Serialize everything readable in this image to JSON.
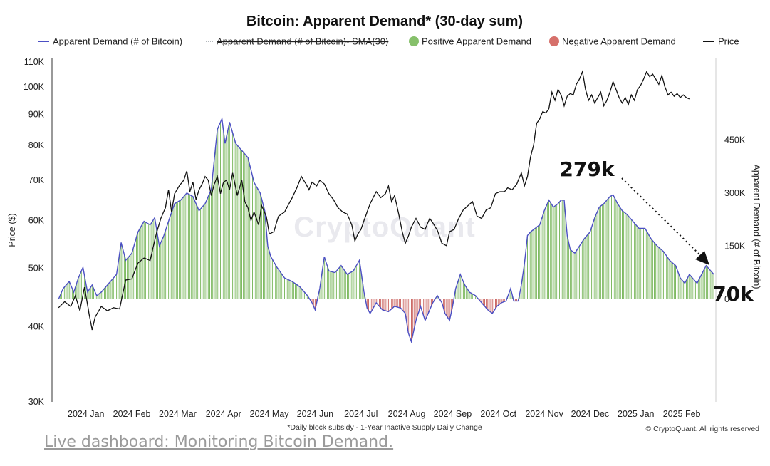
{
  "chart_data": {
    "type": "bar+line",
    "title": "Bitcoin: Apparent Demand* (30-day sum)",
    "footnote": "*Daily block subsidy - 1-Year Inactive Supply Daily Change",
    "copyright": "© CryptoQuant. All rights reserved",
    "watermark": "CryptoQuant",
    "legend": [
      {
        "label": "Apparent Demand (# of Bitcoin)",
        "style": "line",
        "color": "#4b4fc4"
      },
      {
        "label": "Apparent Demand (# of Bitcoin)- SMA(30)",
        "style": "dotted-strike",
        "color": "#9aa0a6"
      },
      {
        "label": "Positive Apparent Demand",
        "style": "dot",
        "color": "#86c06b"
      },
      {
        "label": "Negative Apparent Demand",
        "style": "dot",
        "color": "#d6706b"
      },
      {
        "label": "Price",
        "style": "line",
        "color": "#111111"
      }
    ],
    "y_left": {
      "label": "Price ($)",
      "scale": "log",
      "range": [
        30000,
        110000
      ],
      "ticks": [
        {
          "value": 30000,
          "label": "30K"
        },
        {
          "value": 40000,
          "label": "40K"
        },
        {
          "value": 50000,
          "label": "50K"
        },
        {
          "value": 60000,
          "label": "60K"
        },
        {
          "value": 70000,
          "label": "70K"
        },
        {
          "value": 80000,
          "label": "80K"
        },
        {
          "value": 90000,
          "label": "90K"
        },
        {
          "value": 100000,
          "label": "100K"
        },
        {
          "value": 110000,
          "label": "110K"
        }
      ]
    },
    "y_right": {
      "label": "Apparent Demand (# of Bitcoin)",
      "scale": "linear",
      "range": [
        -290000,
        670000
      ],
      "ticks": [
        {
          "value": 0,
          "label": "0"
        },
        {
          "value": 150000,
          "label": "150K"
        },
        {
          "value": 300000,
          "label": "300K"
        },
        {
          "value": 450000,
          "label": "450K"
        }
      ]
    },
    "x_ticks": [
      {
        "day": 10,
        "label": "2024 Jan"
      },
      {
        "day": 40,
        "label": "2024 Feb"
      },
      {
        "day": 70,
        "label": "2024 Mar"
      },
      {
        "day": 100,
        "label": "2024 Apr"
      },
      {
        "day": 130,
        "label": "2024 May"
      },
      {
        "day": 160,
        "label": "2024 Jun"
      },
      {
        "day": 190,
        "label": "2024 Jul"
      },
      {
        "day": 220,
        "label": "2024 Aug"
      },
      {
        "day": 250,
        "label": "2024 Sep"
      },
      {
        "day": 280,
        "label": "2024 Oct"
      },
      {
        "day": 310,
        "label": "2024 Nov"
      },
      {
        "day": 340,
        "label": "2024 Dec"
      },
      {
        "day": 370,
        "label": "2025 Jan"
      },
      {
        "day": 400,
        "label": "2025 Feb"
      }
    ],
    "x_range_days": [
      -9,
      420
    ],
    "demand_knots": [
      [
        -8,
        0
      ],
      [
        -5,
        30000
      ],
      [
        -1,
        50000
      ],
      [
        2,
        20000
      ],
      [
        5,
        60000
      ],
      [
        8,
        90000
      ],
      [
        11,
        20000
      ],
      [
        14,
        40000
      ],
      [
        17,
        10000
      ],
      [
        20,
        20000
      ],
      [
        24,
        40000
      ],
      [
        27,
        55000
      ],
      [
        30,
        70000
      ],
      [
        33,
        160000
      ],
      [
        36,
        110000
      ],
      [
        40,
        130000
      ],
      [
        44,
        190000
      ],
      [
        48,
        220000
      ],
      [
        52,
        210000
      ],
      [
        55,
        230000
      ],
      [
        58,
        150000
      ],
      [
        61,
        180000
      ],
      [
        64,
        220000
      ],
      [
        68,
        270000
      ],
      [
        72,
        280000
      ],
      [
        76,
        300000
      ],
      [
        80,
        290000
      ],
      [
        84,
        250000
      ],
      [
        88,
        270000
      ],
      [
        92,
        310000
      ],
      [
        96,
        480000
      ],
      [
        99,
        510000
      ],
      [
        101,
        440000
      ],
      [
        104,
        500000
      ],
      [
        108,
        440000
      ],
      [
        112,
        420000
      ],
      [
        116,
        400000
      ],
      [
        120,
        330000
      ],
      [
        124,
        300000
      ],
      [
        127,
        250000
      ],
      [
        129,
        150000
      ],
      [
        131,
        120000
      ],
      [
        135,
        90000
      ],
      [
        140,
        60000
      ],
      [
        145,
        50000
      ],
      [
        150,
        35000
      ],
      [
        155,
        10000
      ],
      [
        158,
        -10000
      ],
      [
        160,
        -30000
      ],
      [
        163,
        30000
      ],
      [
        166,
        120000
      ],
      [
        169,
        80000
      ],
      [
        173,
        75000
      ],
      [
        177,
        95000
      ],
      [
        181,
        70000
      ],
      [
        185,
        80000
      ],
      [
        189,
        110000
      ],
      [
        192,
        20000
      ],
      [
        194,
        -25000
      ],
      [
        196,
        -40000
      ],
      [
        200,
        -10000
      ],
      [
        204,
        -30000
      ],
      [
        208,
        -35000
      ],
      [
        212,
        -20000
      ],
      [
        216,
        -25000
      ],
      [
        219,
        -40000
      ],
      [
        221,
        -95000
      ],
      [
        223,
        -120000
      ],
      [
        226,
        -60000
      ],
      [
        229,
        -20000
      ],
      [
        232,
        -60000
      ],
      [
        234,
        -40000
      ],
      [
        237,
        -10000
      ],
      [
        240,
        10000
      ],
      [
        243,
        -10000
      ],
      [
        245,
        -40000
      ],
      [
        248,
        -60000
      ],
      [
        250,
        -20000
      ],
      [
        252,
        30000
      ],
      [
        255,
        70000
      ],
      [
        258,
        40000
      ],
      [
        261,
        20000
      ],
      [
        265,
        10000
      ],
      [
        269,
        -10000
      ],
      [
        273,
        -30000
      ],
      [
        276,
        -40000
      ],
      [
        279,
        -20000
      ],
      [
        282,
        -10000
      ],
      [
        285,
        -5000
      ],
      [
        288,
        30000
      ],
      [
        290,
        -5000
      ],
      [
        293,
        -5000
      ],
      [
        295,
        40000
      ],
      [
        297,
        100000
      ],
      [
        299,
        180000
      ],
      [
        301,
        190000
      ],
      [
        304,
        200000
      ],
      [
        307,
        210000
      ],
      [
        310,
        250000
      ],
      [
        313,
        280000
      ],
      [
        316,
        260000
      ],
      [
        319,
        270000
      ],
      [
        321,
        280000
      ],
      [
        323,
        280000
      ],
      [
        325,
        180000
      ],
      [
        327,
        140000
      ],
      [
        330,
        130000
      ],
      [
        333,
        150000
      ],
      [
        336,
        170000
      ],
      [
        340,
        190000
      ],
      [
        343,
        230000
      ],
      [
        346,
        260000
      ],
      [
        349,
        270000
      ],
      [
        353,
        290000
      ],
      [
        355,
        295000
      ],
      [
        358,
        270000
      ],
      [
        361,
        250000
      ],
      [
        364,
        240000
      ],
      [
        368,
        220000
      ],
      [
        372,
        200000
      ],
      [
        376,
        200000
      ],
      [
        380,
        170000
      ],
      [
        384,
        150000
      ],
      [
        388,
        135000
      ],
      [
        392,
        110000
      ],
      [
        396,
        95000
      ],
      [
        399,
        60000
      ],
      [
        402,
        45000
      ],
      [
        405,
        70000
      ],
      [
        408,
        55000
      ],
      [
        410,
        45000
      ],
      [
        413,
        70000
      ],
      [
        416,
        95000
      ],
      [
        419,
        80000
      ],
      [
        421,
        70000
      ]
    ],
    "price_knots": [
      [
        -8,
        43000
      ],
      [
        -4,
        44000
      ],
      [
        0,
        43200
      ],
      [
        3,
        45000
      ],
      [
        6,
        42500
      ],
      [
        9,
        46500
      ],
      [
        12,
        42000
      ],
      [
        14,
        39500
      ],
      [
        16,
        41500
      ],
      [
        20,
        43200
      ],
      [
        24,
        42500
      ],
      [
        28,
        43000
      ],
      [
        32,
        42800
      ],
      [
        36,
        47800
      ],
      [
        40,
        48000
      ],
      [
        44,
        51000
      ],
      [
        48,
        52000
      ],
      [
        52,
        51500
      ],
      [
        56,
        57000
      ],
      [
        59,
        60500
      ],
      [
        62,
        63000
      ],
      [
        64,
        67500
      ],
      [
        66,
        62000
      ],
      [
        68,
        66500
      ],
      [
        71,
        68500
      ],
      [
        74,
        70000
      ],
      [
        76,
        72500
      ],
      [
        78,
        67000
      ],
      [
        80,
        69500
      ],
      [
        82,
        65000
      ],
      [
        84,
        67500
      ],
      [
        86,
        69000
      ],
      [
        88,
        71000
      ],
      [
        90,
        70000
      ],
      [
        92,
        66000
      ],
      [
        94,
        69000
      ],
      [
        96,
        71000
      ],
      [
        98,
        66500
      ],
      [
        100,
        69500
      ],
      [
        102,
        70000
      ],
      [
        104,
        67500
      ],
      [
        106,
        72000
      ],
      [
        109,
        66000
      ],
      [
        112,
        70000
      ],
      [
        114,
        64500
      ],
      [
        116,
        63000
      ],
      [
        118,
        60000
      ],
      [
        120,
        62000
      ],
      [
        123,
        59000
      ],
      [
        125,
        63500
      ],
      [
        128,
        61000
      ],
      [
        130,
        57000
      ],
      [
        133,
        57500
      ],
      [
        136,
        61000
      ],
      [
        140,
        62000
      ],
      [
        145,
        65500
      ],
      [
        148,
        68000
      ],
      [
        151,
        71000
      ],
      [
        154,
        69000
      ],
      [
        156,
        67500
      ],
      [
        158,
        69500
      ],
      [
        161,
        68500
      ],
      [
        163,
        70000
      ],
      [
        166,
        69000
      ],
      [
        169,
        66500
      ],
      [
        172,
        65000
      ],
      [
        175,
        63000
      ],
      [
        178,
        62000
      ],
      [
        181,
        61500
      ],
      [
        184,
        59000
      ],
      [
        186,
        55500
      ],
      [
        188,
        57000
      ],
      [
        190,
        58000
      ],
      [
        193,
        61000
      ],
      [
        196,
        64000
      ],
      [
        198,
        65500
      ],
      [
        200,
        67000
      ],
      [
        203,
        65500
      ],
      [
        206,
        66500
      ],
      [
        208,
        68500
      ],
      [
        210,
        64500
      ],
      [
        212,
        66000
      ],
      [
        215,
        61000
      ],
      [
        217,
        57500
      ],
      [
        219,
        55000
      ],
      [
        221,
        56500
      ],
      [
        223,
        58500
      ],
      [
        226,
        60500
      ],
      [
        229,
        58500
      ],
      [
        232,
        58000
      ],
      [
        235,
        60500
      ],
      [
        237,
        59500
      ],
      [
        240,
        57800
      ],
      [
        243,
        55000
      ],
      [
        246,
        54500
      ],
      [
        248,
        57500
      ],
      [
        251,
        58000
      ],
      [
        254,
        60500
      ],
      [
        257,
        62500
      ],
      [
        260,
        63500
      ],
      [
        263,
        64500
      ],
      [
        266,
        61000
      ],
      [
        269,
        60500
      ],
      [
        272,
        62500
      ],
      [
        275,
        63000
      ],
      [
        278,
        66500
      ],
      [
        281,
        67000
      ],
      [
        284,
        67000
      ],
      [
        286,
        68000
      ],
      [
        289,
        67500
      ],
      [
        292,
        69000
      ],
      [
        295,
        72000
      ],
      [
        297,
        68500
      ],
      [
        299,
        71000
      ],
      [
        301,
        76500
      ],
      [
        303,
        80000
      ],
      [
        305,
        87000
      ],
      [
        307,
        88500
      ],
      [
        309,
        91000
      ],
      [
        311,
        90500
      ],
      [
        313,
        92000
      ],
      [
        315,
        98000
      ],
      [
        317,
        95000
      ],
      [
        319,
        99000
      ],
      [
        321,
        97000
      ],
      [
        323,
        93000
      ],
      [
        325,
        96500
      ],
      [
        327,
        97500
      ],
      [
        329,
        97000
      ],
      [
        331,
        101000
      ],
      [
        333,
        103000
      ],
      [
        335,
        106000
      ],
      [
        337,
        99000
      ],
      [
        339,
        95000
      ],
      [
        341,
        97000
      ],
      [
        343,
        94000
      ],
      [
        345,
        96000
      ],
      [
        347,
        98000
      ],
      [
        349,
        93000
      ],
      [
        351,
        95000
      ],
      [
        353,
        98000
      ],
      [
        355,
        102000
      ],
      [
        357,
        99000
      ],
      [
        359,
        96000
      ],
      [
        361,
        94000
      ],
      [
        363,
        96000
      ],
      [
        365,
        93500
      ],
      [
        367,
        97000
      ],
      [
        369,
        95000
      ],
      [
        371,
        99000
      ],
      [
        373,
        100500
      ],
      [
        375,
        103000
      ],
      [
        377,
        106000
      ],
      [
        379,
        104000
      ],
      [
        381,
        105000
      ],
      [
        383,
        103000
      ],
      [
        385,
        101000
      ],
      [
        387,
        104500
      ],
      [
        389,
        100000
      ],
      [
        391,
        97000
      ],
      [
        393,
        98000
      ],
      [
        395,
        96500
      ],
      [
        397,
        97500
      ],
      [
        399,
        96000
      ],
      [
        401,
        97000
      ],
      [
        403,
        96000
      ],
      [
        405,
        95500
      ]
    ],
    "annotations": [
      {
        "text": "279k",
        "day": 313,
        "demand": 279000
      },
      {
        "text": "70k",
        "day": 419,
        "demand": 70000
      }
    ]
  },
  "footer": {
    "link_text": "Live dashboard: Monitoring Bitcoin Demand."
  }
}
